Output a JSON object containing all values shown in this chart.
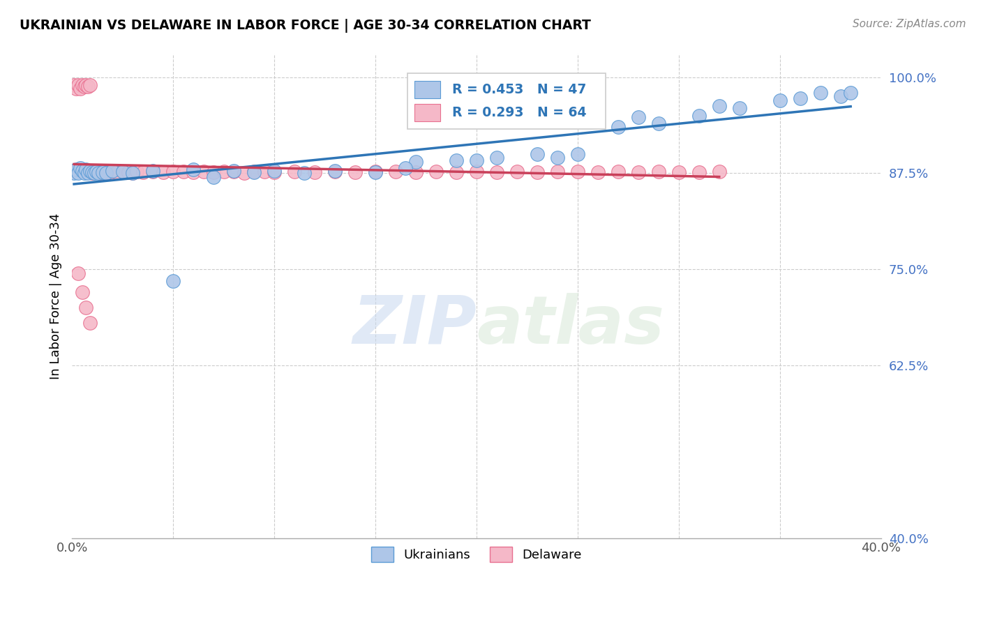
{
  "title": "UKRAINIAN VS DELAWARE IN LABOR FORCE | AGE 30-34 CORRELATION CHART",
  "source_text": "Source: ZipAtlas.com",
  "ylabel": "In Labor Force | Age 30-34",
  "xlim": [
    0.0,
    0.4
  ],
  "ylim": [
    0.4,
    1.03
  ],
  "ytick_positions": [
    0.4,
    0.625,
    0.75,
    0.875,
    1.0
  ],
  "yticklabels": [
    "40.0%",
    "62.5%",
    "75.0%",
    "87.5%",
    "100.0%"
  ],
  "r_ukrainian": 0.453,
  "n_ukrainian": 47,
  "r_delaware": 0.293,
  "n_delaware": 64,
  "ukrainian_color": "#aec6e8",
  "delaware_color": "#f5b8c8",
  "ukrainian_edge_color": "#5b9bd5",
  "delaware_edge_color": "#e87090",
  "ukrainian_line_color": "#2e75b6",
  "delaware_line_color": "#c9405a",
  "watermark_zip": "ZIP",
  "watermark_atlas": "atlas",
  "legend_r_color": "#2e75b6",
  "legend_n_color": "#2e75b6",
  "ukr_x": [
    0.001,
    0.002,
    0.003,
    0.004,
    0.005,
    0.006,
    0.007,
    0.008,
    0.009,
    0.01,
    0.011,
    0.012,
    0.013,
    0.015,
    0.017,
    0.02,
    0.025,
    0.03,
    0.04,
    0.05,
    0.06,
    0.07,
    0.08,
    0.09,
    0.1,
    0.115,
    0.13,
    0.15,
    0.17,
    0.19,
    0.21,
    0.23,
    0.25,
    0.27,
    0.29,
    0.31,
    0.33,
    0.35,
    0.37,
    0.165,
    0.2,
    0.24,
    0.28,
    0.32,
    0.36,
    0.38,
    0.385
  ],
  "ukr_y": [
    0.875,
    0.88,
    0.875,
    0.882,
    0.878,
    0.875,
    0.88,
    0.875,
    0.878,
    0.876,
    0.875,
    0.877,
    0.875,
    0.876,
    0.875,
    0.878,
    0.877,
    0.875,
    0.878,
    0.735,
    0.88,
    0.87,
    0.878,
    0.876,
    0.878,
    0.875,
    0.878,
    0.876,
    0.89,
    0.892,
    0.895,
    0.9,
    0.9,
    0.935,
    0.94,
    0.95,
    0.96,
    0.97,
    0.98,
    0.882,
    0.892,
    0.895,
    0.948,
    0.962,
    0.972,
    0.975,
    0.98
  ],
  "del_x": [
    0.001,
    0.002,
    0.003,
    0.004,
    0.005,
    0.006,
    0.007,
    0.008,
    0.009,
    0.01,
    0.011,
    0.012,
    0.013,
    0.014,
    0.015,
    0.016,
    0.017,
    0.018,
    0.02,
    0.022,
    0.025,
    0.028,
    0.03,
    0.032,
    0.035,
    0.04,
    0.045,
    0.05,
    0.055,
    0.06,
    0.065,
    0.07,
    0.075,
    0.08,
    0.085,
    0.09,
    0.095,
    0.1,
    0.11,
    0.12,
    0.13,
    0.14,
    0.15,
    0.16,
    0.17,
    0.18,
    0.19,
    0.2,
    0.21,
    0.22,
    0.23,
    0.24,
    0.25,
    0.26,
    0.27,
    0.28,
    0.29,
    0.3,
    0.31,
    0.32,
    0.003,
    0.005,
    0.007,
    0.009
  ],
  "del_y": [
    0.99,
    0.985,
    0.99,
    0.985,
    0.99,
    0.988,
    0.99,
    0.988,
    0.99,
    0.875,
    0.878,
    0.876,
    0.878,
    0.875,
    0.878,
    0.876,
    0.877,
    0.876,
    0.876,
    0.876,
    0.877,
    0.876,
    0.875,
    0.877,
    0.876,
    0.877,
    0.876,
    0.877,
    0.877,
    0.876,
    0.877,
    0.876,
    0.877,
    0.877,
    0.875,
    0.877,
    0.877,
    0.876,
    0.877,
    0.876,
    0.877,
    0.876,
    0.877,
    0.877,
    0.876,
    0.877,
    0.876,
    0.877,
    0.876,
    0.877,
    0.876,
    0.877,
    0.877,
    0.876,
    0.877,
    0.876,
    0.877,
    0.876,
    0.876,
    0.877,
    0.745,
    0.72,
    0.7,
    0.68
  ]
}
